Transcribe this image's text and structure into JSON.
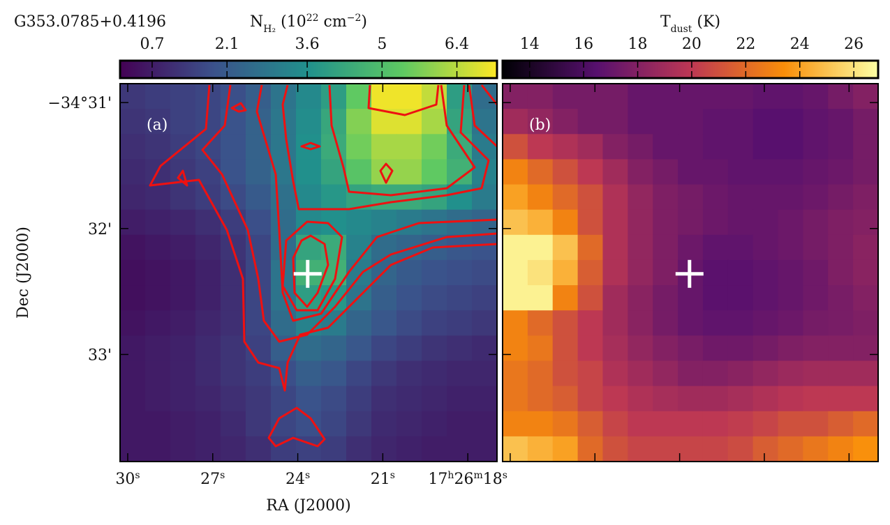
{
  "figure_title": "G353.0785+0.4196",
  "chart_data": [
    {
      "type": "heatmap",
      "panel_label": "(a)",
      "xlabel": "RA (J2000)",
      "ylabel": "Dec (J2000)",
      "xlim": [
        30.27,
        16.97
      ],
      "ylim": [
        30.85,
        33.85
      ],
      "xticks": [
        {
          "value": 30,
          "label": [
            {
              "text": "30"
            },
            {
              "text": "s",
              "sup": true
            }
          ]
        },
        {
          "value": 27,
          "label": [
            {
              "text": "27"
            },
            {
              "text": "s",
              "sup": true
            }
          ]
        },
        {
          "value": 24,
          "label": [
            {
              "text": "24"
            },
            {
              "text": "s",
              "sup": true
            }
          ]
        },
        {
          "value": 21,
          "label": [
            {
              "text": "21"
            },
            {
              "text": "s",
              "sup": true
            }
          ]
        },
        {
          "value": 18,
          "label": [
            {
              "text": "17"
            },
            {
              "text": "h",
              "sup": true
            },
            {
              "text": "26"
            },
            {
              "text": "m",
              "sup": true
            },
            {
              "text": "18"
            },
            {
              "text": "s",
              "sup": true
            }
          ]
        }
      ],
      "yticks": [
        {
          "value": 31,
          "label": "−34°31'"
        },
        {
          "value": 32,
          "label": "32'"
        },
        {
          "value": 33,
          "label": "33'"
        }
      ],
      "marker": {
        "ra": 23.65,
        "dec": 32.36
      },
      "colorbar": {
        "cmap": "viridis",
        "lim": [
          0.1,
          7.15
        ],
        "ticks": [
          0.7,
          2.1,
          3.6,
          5.0,
          6.4
        ],
        "label": [
          {
            "text": "N"
          },
          {
            "text": "H₂",
            "sub": true
          },
          {
            "text": " (10"
          },
          {
            "text": "22",
            "sup": true
          },
          {
            "text": " cm"
          },
          {
            "text": "−2",
            "sup": true
          },
          {
            "text": ")"
          }
        ]
      },
      "z": [
        [
          1.3,
          1.4,
          1.5,
          1.6,
          1.8,
          2.2,
          2.8,
          3.4,
          4.0,
          5.4,
          7.0,
          7.0,
          6.5,
          4.0,
          2.6
        ],
        [
          1.2,
          1.3,
          1.5,
          1.6,
          1.9,
          2.3,
          2.9,
          3.5,
          4.3,
          5.8,
          6.8,
          6.8,
          6.2,
          4.2,
          2.8
        ],
        [
          1.1,
          1.2,
          1.4,
          1.6,
          1.9,
          2.3,
          2.9,
          3.6,
          4.4,
          5.6,
          6.2,
          6.2,
          5.6,
          4.4,
          3.0
        ],
        [
          1.0,
          1.1,
          1.3,
          1.5,
          1.9,
          2.3,
          2.9,
          3.6,
          4.2,
          5.2,
          6.0,
          6.0,
          5.4,
          4.6,
          3.2
        ],
        [
          0.9,
          1.0,
          1.2,
          1.4,
          1.7,
          2.1,
          2.7,
          3.4,
          3.8,
          4.2,
          4.4,
          4.4,
          4.2,
          3.6,
          3.0
        ],
        [
          0.7,
          0.8,
          0.9,
          1.1,
          1.4,
          1.8,
          2.6,
          3.4,
          3.6,
          3.4,
          3.2,
          3.0,
          2.8,
          2.6,
          2.4
        ],
        [
          0.5,
          0.6,
          0.7,
          0.9,
          1.2,
          1.6,
          2.6,
          4.2,
          4.4,
          3.2,
          2.6,
          2.4,
          2.2,
          2.0,
          1.9
        ],
        [
          0.4,
          0.5,
          0.6,
          0.8,
          1.1,
          1.6,
          2.8,
          4.6,
          4.6,
          3.0,
          2.4,
          2.1,
          1.9,
          1.8,
          1.7
        ],
        [
          0.4,
          0.5,
          0.6,
          0.8,
          1.1,
          1.6,
          2.8,
          4.0,
          3.8,
          2.8,
          2.2,
          1.9,
          1.7,
          1.6,
          1.5
        ],
        [
          0.5,
          0.6,
          0.7,
          0.9,
          1.1,
          1.6,
          2.6,
          3.2,
          3.0,
          2.4,
          2.0,
          1.7,
          1.5,
          1.4,
          1.3
        ],
        [
          0.6,
          0.7,
          0.8,
          1.0,
          1.2,
          1.5,
          2.2,
          2.6,
          2.4,
          2.0,
          1.6,
          1.4,
          1.2,
          1.1,
          1.0
        ],
        [
          0.6,
          0.7,
          0.8,
          1.0,
          1.2,
          1.4,
          1.8,
          2.2,
          2.0,
          1.6,
          1.3,
          1.1,
          1.0,
          0.9,
          0.9
        ],
        [
          0.6,
          0.7,
          0.8,
          0.9,
          1.1,
          1.3,
          1.6,
          1.9,
          1.7,
          1.4,
          1.1,
          1.0,
          0.9,
          0.8,
          0.8
        ],
        [
          0.6,
          0.6,
          0.7,
          0.8,
          1.0,
          1.3,
          1.6,
          1.8,
          1.6,
          1.3,
          1.0,
          0.9,
          0.8,
          0.7,
          0.7
        ],
        [
          0.6,
          0.6,
          0.7,
          0.8,
          0.9,
          1.1,
          1.4,
          1.5,
          1.4,
          1.1,
          0.9,
          0.8,
          0.7,
          0.7,
          0.7
        ]
      ]
    },
    {
      "type": "heatmap",
      "panel_label": "(b)",
      "colorbar": {
        "cmap": "inferno",
        "lim": [
          13.0,
          26.9
        ],
        "ticks": [
          14,
          16,
          18,
          20,
          22,
          24,
          26
        ],
        "label": [
          {
            "text": "T"
          },
          {
            "text": "dust",
            "sub": true
          },
          {
            "text": " (K)"
          }
        ]
      },
      "z": [
        [
          18,
          18,
          17.5,
          17.5,
          17.5,
          17,
          17,
          17,
          17,
          17,
          16.8,
          16.8,
          17,
          17.5,
          18
        ],
        [
          19,
          18.5,
          18,
          17.5,
          17.5,
          17,
          17,
          17,
          16.8,
          16.8,
          16.5,
          16.5,
          16.8,
          17,
          17.5
        ],
        [
          21,
          20,
          19.5,
          19,
          18,
          17.5,
          17,
          17,
          16.8,
          16.8,
          16.5,
          16.5,
          16.8,
          17,
          17.5
        ],
        [
          23,
          22,
          21,
          20,
          19,
          18,
          17.5,
          17,
          17,
          16.8,
          16.8,
          16.8,
          17,
          17.2,
          17.5
        ],
        [
          24,
          23,
          22,
          21,
          19.5,
          18.5,
          17.8,
          17.5,
          17.2,
          17,
          17,
          17,
          17.2,
          17.5,
          17.8
        ],
        [
          25,
          24.5,
          23,
          21,
          19.5,
          18.5,
          17.8,
          17.5,
          17.2,
          17,
          17,
          17.2,
          17.5,
          17.8,
          18
        ],
        [
          26.5,
          26.5,
          25,
          22,
          19.5,
          18.5,
          17.8,
          17.2,
          16.8,
          16.8,
          17,
          17.2,
          17.5,
          17.8,
          18.2
        ],
        [
          26.5,
          26,
          24.5,
          21.5,
          19.5,
          18.5,
          17.8,
          17,
          16.6,
          16.6,
          16.8,
          17,
          17.3,
          17.8,
          18.2
        ],
        [
          26.5,
          26.5,
          23,
          21,
          19,
          18.2,
          17.5,
          17,
          16.6,
          16.6,
          16.8,
          17,
          17.3,
          17.6,
          18
        ],
        [
          23,
          22,
          21,
          20,
          19,
          18.2,
          17.5,
          17,
          16.8,
          16.8,
          17,
          17.2,
          17.5,
          17.6,
          17.8
        ],
        [
          23,
          22.5,
          21,
          20,
          19.2,
          18.5,
          18,
          17.6,
          17.3,
          17.3,
          17.5,
          17.8,
          18,
          18,
          18
        ],
        [
          22.5,
          22,
          21,
          20.5,
          19.5,
          19,
          18.5,
          18,
          18,
          18.2,
          18.5,
          18.8,
          19,
          19,
          19
        ],
        [
          22.5,
          22,
          21.5,
          20.5,
          20,
          19.5,
          19.2,
          19,
          19,
          19.2,
          19.5,
          19.8,
          20,
          20,
          20
        ],
        [
          23,
          23,
          22.5,
          21.5,
          20.5,
          20,
          20,
          20,
          20,
          20.2,
          20.5,
          21,
          21,
          21.5,
          22
        ],
        [
          25,
          24.5,
          24,
          22,
          21,
          20.5,
          20.5,
          20.5,
          20.5,
          20.8,
          21.5,
          22,
          22.5,
          23,
          23.5
        ]
      ]
    }
  ]
}
